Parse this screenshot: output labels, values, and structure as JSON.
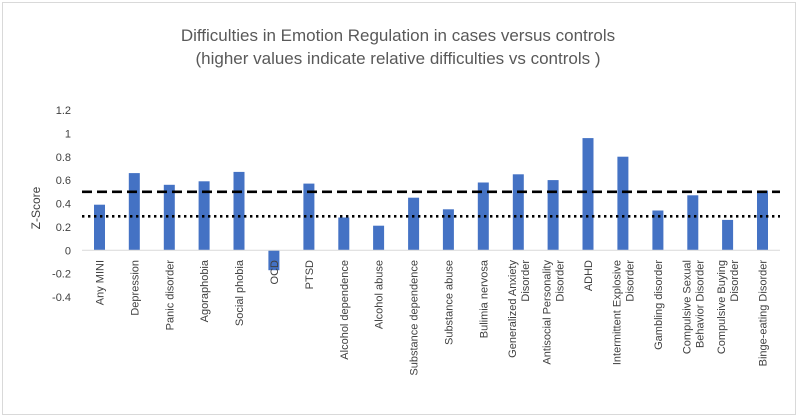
{
  "chart_data": {
    "type": "bar",
    "title": "Difficulties in Emotion Regulation in cases versus controls",
    "subtitle": "(higher values indicate relative difficulties vs controls )",
    "xlabel": "",
    "ylabel": "Z-Score",
    "ylim": [
      -0.4,
      1.2
    ],
    "yticks": [
      -0.4,
      -0.2,
      0,
      0.2,
      0.4,
      0.6,
      0.8,
      1,
      1.2
    ],
    "ytick_labels": [
      "-0.4",
      "-0.2",
      "0",
      "0.2",
      "0.4",
      "0.6",
      "0.8",
      "1",
      "1.2"
    ],
    "grid": false,
    "bar_color": "#4472C4",
    "categories": [
      [
        "Any MINI"
      ],
      [
        "Depression"
      ],
      [
        "Panic disorder"
      ],
      [
        "Agoraphobia"
      ],
      [
        "Social phobia"
      ],
      [
        "OCD"
      ],
      [
        "PTSD"
      ],
      [
        "Alcohol dependence"
      ],
      [
        "Alcohol abuse"
      ],
      [
        "Substance dependence"
      ],
      [
        "Substance abuse"
      ],
      [
        "Bulimia nervosa"
      ],
      [
        "Generalized Anxiety",
        "Disorder"
      ],
      [
        "Antisocial Personality",
        "Disorder"
      ],
      [
        "ADHD"
      ],
      [
        "Intermittent Explosive",
        "Disorder"
      ],
      [
        "Gambling disorder"
      ],
      [
        "Compulsive Sexual",
        "Behavior Disorder"
      ],
      [
        "Compulsive Buying",
        "Disorder"
      ],
      [
        "Binge-eating Disorder"
      ]
    ],
    "values": [
      0.39,
      0.66,
      0.56,
      0.59,
      0.67,
      -0.17,
      0.57,
      0.28,
      0.21,
      0.45,
      0.35,
      0.58,
      0.65,
      0.6,
      0.96,
      0.8,
      0.34,
      0.47,
      0.26,
      0.51
    ],
    "reference_lines": [
      {
        "style": "dashed",
        "value": 0.5
      },
      {
        "style": "dotted",
        "value": 0.29
      }
    ]
  }
}
